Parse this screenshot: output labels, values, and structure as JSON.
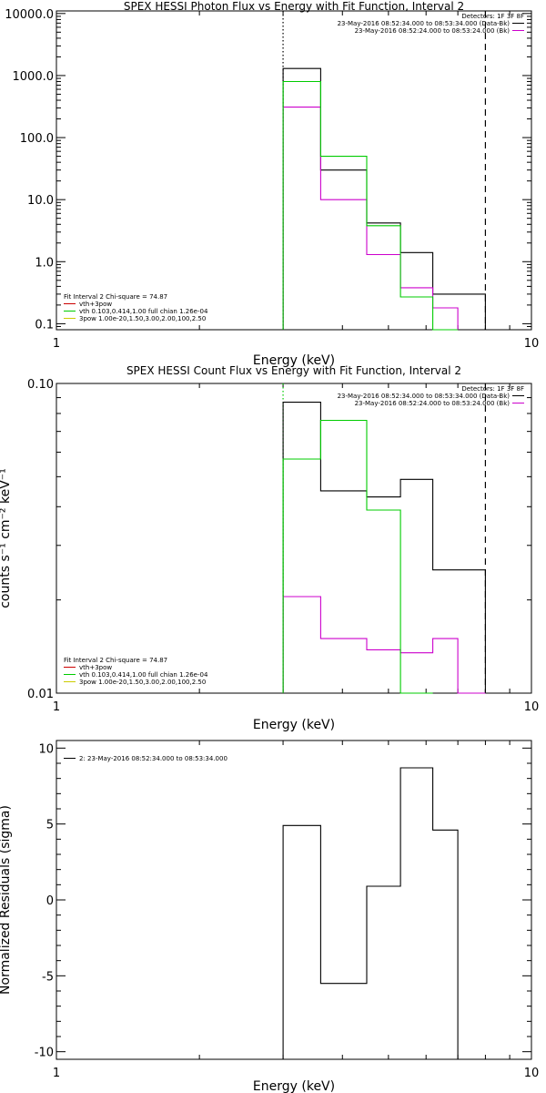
{
  "chart_data": [
    {
      "type": "line",
      "title": "SPEX HESSI Photon Flux vs Energy with Fit Function, Interval 2",
      "xlabel": "Energy (keV)",
      "ylabel": "",
      "xscale": "log",
      "yscale": "log",
      "xlim": [
        1,
        10
      ],
      "ylim": [
        0.08,
        11000
      ],
      "xticks": [
        {
          "v": 1,
          "label": "1"
        },
        {
          "v": 10,
          "label": "10"
        }
      ],
      "yticks": [
        {
          "v": 0.1,
          "label": "0.1"
        },
        {
          "v": 1,
          "label": "1.0"
        },
        {
          "v": 10,
          "label": "10.0"
        },
        {
          "v": 100,
          "label": "100.0"
        },
        {
          "v": 1000,
          "label": "1000.0"
        },
        {
          "v": 10000,
          "label": "10000.0"
        }
      ],
      "vlines": [
        {
          "x": 3,
          "style": "dotted",
          "color": "#000000"
        },
        {
          "x": 8,
          "style": "dashed",
          "color": "#000000"
        }
      ],
      "legend_right": {
        "position": "top-right",
        "header": "Detectors: 1F 3F 8F",
        "entries": [
          {
            "text": "23-May-2016 08:52:34.000 to 08:53:34.000 (Data-Bk)",
            "color": "#000000"
          },
          {
            "text": "23-May-2016 08:52:24.000 to 08:53:24.000 (Bk)",
            "color": "#cc00cc"
          }
        ]
      },
      "legend_left": {
        "position": "bottom-left",
        "header": "Fit Interval 2   Chi-square = 74.87",
        "entries": [
          {
            "text": "vth+3pow",
            "color": "#cc0000"
          },
          {
            "text": "vth 0.103,0.414,1.00  full chian 1.26e-04",
            "color": "#00cc00"
          },
          {
            "text": "3pow 1.00e-20,1.50,3.00,2.00,100,2.50",
            "color": "#cccc00"
          }
        ]
      },
      "series": [
        {
          "name": "Data-Bk",
          "color": "#000000",
          "edges": [
            3,
            3.6,
            4.5,
            5.3,
            6.2,
            7,
            8
          ],
          "values": [
            1300,
            30,
            4.2,
            1.4,
            0.3,
            0.3
          ]
        },
        {
          "name": "Bk",
          "color": "#cc00cc",
          "edges": [
            3,
            3.6,
            4.5,
            5.3,
            6.2,
            7
          ],
          "values": [
            310,
            10,
            1.3,
            0.38,
            0.18
          ]
        },
        {
          "name": "vth+3pow",
          "color": "#00cc00",
          "edges": [
            3,
            3.6,
            4.5,
            5.3,
            6.2,
            7
          ],
          "values": [
            800,
            50,
            3.8,
            0.27,
            0.08
          ]
        }
      ]
    },
    {
      "type": "line",
      "title": "SPEX HESSI Count Flux vs Energy with Fit Function, Interval 2",
      "xlabel": "Energy (keV)",
      "ylabel": "counts s⁻¹ cm⁻² keV⁻¹",
      "xscale": "log",
      "yscale": "log",
      "xlim": [
        1,
        10
      ],
      "ylim": [
        0.01,
        0.1
      ],
      "xticks": [
        {
          "v": 1,
          "label": "1"
        },
        {
          "v": 10,
          "label": "10"
        }
      ],
      "yticks": [
        {
          "v": 0.01,
          "label": "0.01"
        },
        {
          "v": 0.1,
          "label": "0.10"
        }
      ],
      "vlines": [
        {
          "x": 3,
          "style": "dotted",
          "color": "#00cc00"
        },
        {
          "x": 8,
          "style": "dashed",
          "color": "#000000"
        }
      ],
      "legend_right": {
        "position": "top-right",
        "header": "Detectors: 1F 3F 8F",
        "entries": [
          {
            "text": "23-May-2016 08:52:34.000 to 08:53:34.000 (Data-Bk)",
            "color": "#000000"
          },
          {
            "text": "23-May-2016 08:52:24.000 to 08:53:24.000 (Bk)",
            "color": "#cc00cc"
          }
        ]
      },
      "legend_left": {
        "position": "bottom-left",
        "header": "Fit Interval 2   Chi-square = 74.87",
        "entries": [
          {
            "text": "vth+3pow",
            "color": "#cc0000"
          },
          {
            "text": "vth 0.103,0.414,1.00  full chian 1.26e-04",
            "color": "#00cc00"
          },
          {
            "text": "3pow 1.00e-20,1.50,3.00,2.00,100,2.50",
            "color": "#cccc00"
          }
        ]
      },
      "series": [
        {
          "name": "Data-Bk",
          "color": "#000000",
          "edges": [
            3,
            3.6,
            4.5,
            5.3,
            6.2,
            7,
            8
          ],
          "values": [
            0.087,
            0.045,
            0.043,
            0.049,
            0.025,
            0.025
          ]
        },
        {
          "name": "Bk",
          "color": "#cc00cc",
          "edges": [
            3,
            3.6,
            4.5,
            5.3,
            6.2,
            7,
            8
          ],
          "values": [
            0.0205,
            0.015,
            0.0138,
            0.0135,
            0.015,
            0.0098
          ]
        },
        {
          "name": "vth+3pow",
          "color": "#00cc00",
          "edges": [
            3,
            3.6,
            4.5,
            5.3,
            6.2
          ],
          "values": [
            0.057,
            0.076,
            0.039,
            0.0098
          ]
        }
      ]
    },
    {
      "type": "line",
      "title": "",
      "xlabel": "Energy (keV)",
      "ylabel": "Normalized Residuals (sigma)",
      "xscale": "log",
      "yscale": "linear",
      "xlim": [
        1,
        10
      ],
      "ylim": [
        -10.5,
        10.5
      ],
      "xticks": [
        {
          "v": 1,
          "label": "1"
        },
        {
          "v": 10,
          "label": "10"
        }
      ],
      "yticks": [
        {
          "v": -10,
          "label": "-10"
        },
        {
          "v": -5,
          "label": "-5"
        },
        {
          "v": 0,
          "label": "0"
        },
        {
          "v": 5,
          "label": "5"
        },
        {
          "v": 10,
          "label": "10"
        }
      ],
      "vlines": [],
      "legend_right": null,
      "legend_left": {
        "position": "top-left",
        "header": "",
        "entries": [
          {
            "text": "2: 23-May-2016 08:52:34.000 to 08:53:34.000",
            "color": "#000000"
          }
        ]
      },
      "series": [
        {
          "name": "2: 23-May-2016 08:52:34.000 to 08:53:34.000",
          "color": "#000000",
          "edges": [
            3,
            3.6,
            4.5,
            5.3,
            6.2,
            7
          ],
          "values": [
            4.9,
            -5.5,
            0.9,
            8.7,
            4.6
          ]
        }
      ]
    }
  ]
}
